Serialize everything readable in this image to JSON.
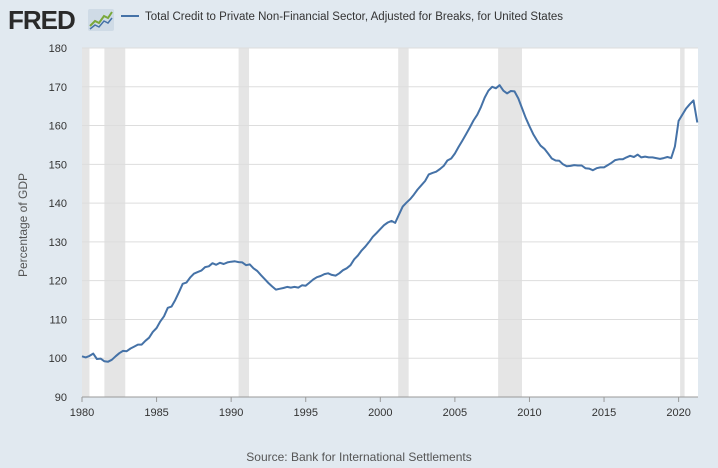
{
  "header": {
    "logo_text": "FRED",
    "legend_label": "Total Credit to Private Non-Financial Sector, Adjusted for Breaks, for United States"
  },
  "source_text": "Source: Bank for International Settlements",
  "colors": {
    "line": "#4572a7",
    "recession": "#e5e5e5",
    "plot_bg": "#ffffff",
    "page_bg": "#e1e9f0",
    "grid": "#dddddd"
  },
  "chart_data": {
    "type": "line",
    "title": "Total Credit to Private Non-Financial Sector, Adjusted for Breaks, for United States",
    "xlabel": "",
    "ylabel": "Percentage of GDP",
    "xlim": [
      1980.0,
      2021.3
    ],
    "ylim": [
      90,
      180
    ],
    "xticks": [
      1980,
      1985,
      1990,
      1995,
      2000,
      2005,
      2010,
      2015,
      2020
    ],
    "yticks": [
      90,
      100,
      110,
      120,
      130,
      140,
      150,
      160,
      170,
      180
    ],
    "grid": "horizontal",
    "recessions": [
      [
        1980.0,
        1980.5
      ],
      [
        1981.5,
        1982.9
      ],
      [
        1990.5,
        1991.2
      ],
      [
        2001.2,
        2001.9
      ],
      [
        2007.9,
        2009.5
      ],
      [
        2020.1,
        2020.4
      ]
    ],
    "series": [
      {
        "name": "Total Credit to Private Non-Financial Sector, Adjusted for Breaks, for United States",
        "x": [
          1980.0,
          1980.25,
          1980.5,
          1980.75,
          1981.0,
          1981.25,
          1981.5,
          1981.75,
          1982.0,
          1982.25,
          1982.5,
          1982.75,
          1983.0,
          1983.25,
          1983.5,
          1983.75,
          1984.0,
          1984.25,
          1984.5,
          1984.75,
          1985.0,
          1985.25,
          1985.5,
          1985.75,
          1986.0,
          1986.25,
          1986.5,
          1986.75,
          1987.0,
          1987.25,
          1987.5,
          1987.75,
          1988.0,
          1988.25,
          1988.5,
          1988.75,
          1989.0,
          1989.25,
          1989.5,
          1989.75,
          1990.0,
          1990.25,
          1990.5,
          1990.75,
          1991.0,
          1991.25,
          1991.5,
          1991.75,
          1992.0,
          1992.25,
          1992.5,
          1992.75,
          1993.0,
          1993.25,
          1993.5,
          1993.75,
          1994.0,
          1994.25,
          1994.5,
          1994.75,
          1995.0,
          1995.25,
          1995.5,
          1995.75,
          1996.0,
          1996.25,
          1996.5,
          1996.75,
          1997.0,
          1997.25,
          1997.5,
          1997.75,
          1998.0,
          1998.25,
          1998.5,
          1998.75,
          1999.0,
          1999.25,
          1999.5,
          1999.75,
          2000.0,
          2000.25,
          2000.5,
          2000.75,
          2001.0,
          2001.25,
          2001.5,
          2001.75,
          2002.0,
          2002.25,
          2002.5,
          2002.75,
          2003.0,
          2003.25,
          2003.5,
          2003.75,
          2004.0,
          2004.25,
          2004.5,
          2004.75,
          2005.0,
          2005.25,
          2005.5,
          2005.75,
          2006.0,
          2006.25,
          2006.5,
          2006.75,
          2007.0,
          2007.25,
          2007.5,
          2007.75,
          2008.0,
          2008.25,
          2008.5,
          2008.75,
          2009.0,
          2009.25,
          2009.5,
          2009.75,
          2010.0,
          2010.25,
          2010.5,
          2010.75,
          2011.0,
          2011.25,
          2011.5,
          2011.75,
          2012.0,
          2012.25,
          2012.5,
          2012.75,
          2013.0,
          2013.25,
          2013.5,
          2013.75,
          2014.0,
          2014.25,
          2014.5,
          2014.75,
          2015.0,
          2015.25,
          2015.5,
          2015.75,
          2016.0,
          2016.25,
          2016.5,
          2016.75,
          2017.0,
          2017.25,
          2017.5,
          2017.75,
          2018.0,
          2018.25,
          2018.5,
          2018.75,
          2019.0,
          2019.25,
          2019.5,
          2019.75,
          2020.0,
          2020.25,
          2020.5,
          2020.75,
          2021.0,
          2021.25
        ],
        "values": [
          100.5,
          100.2,
          100.6,
          101.2,
          99.8,
          99.9,
          99.2,
          99.1,
          99.6,
          100.5,
          101.3,
          101.9,
          101.8,
          102.5,
          103.0,
          103.5,
          103.5,
          104.5,
          105.3,
          106.8,
          107.8,
          109.5,
          110.8,
          113.0,
          113.3,
          115.0,
          117.0,
          119.2,
          119.5,
          120.8,
          121.8,
          122.2,
          122.6,
          123.5,
          123.7,
          124.5,
          124.1,
          124.6,
          124.3,
          124.7,
          124.9,
          125.0,
          124.8,
          124.7,
          124.0,
          124.2,
          123.2,
          122.5,
          121.4,
          120.4,
          119.4,
          118.5,
          117.7,
          117.9,
          118.1,
          118.4,
          118.2,
          118.4,
          118.2,
          118.8,
          118.7,
          119.5,
          120.3,
          120.9,
          121.2,
          121.7,
          121.9,
          121.5,
          121.3,
          121.9,
          122.7,
          123.2,
          124.0,
          125.5,
          126.5,
          127.8,
          128.8,
          130.0,
          131.3,
          132.3,
          133.3,
          134.3,
          135.0,
          135.4,
          134.9,
          137.0,
          139.1,
          140.1,
          141.0,
          142.2,
          143.5,
          144.6,
          145.7,
          147.4,
          147.8,
          148.1,
          148.8,
          149.6,
          151.0,
          151.5,
          152.8,
          154.5,
          156.1,
          157.8,
          159.5,
          161.3,
          162.8,
          164.8,
          167.2,
          169.0,
          170.0,
          169.6,
          170.4,
          169.0,
          168.3,
          168.9,
          168.8,
          167.0,
          164.5,
          162.0,
          159.8,
          157.8,
          156.2,
          154.8,
          154.0,
          152.8,
          151.5,
          151.0,
          150.9,
          150.0,
          149.5,
          149.6,
          149.8,
          149.7,
          149.7,
          149.0,
          148.9,
          148.5,
          149.0,
          149.2,
          149.2,
          149.8,
          150.4,
          151.1,
          151.3,
          151.3,
          151.8,
          152.2,
          151.9,
          152.5,
          151.8,
          152.0,
          151.8,
          151.8,
          151.6,
          151.4,
          151.6,
          151.9,
          151.6,
          154.6,
          161.2,
          162.8,
          164.4,
          165.5,
          166.5,
          160.8
        ]
      }
    ]
  }
}
